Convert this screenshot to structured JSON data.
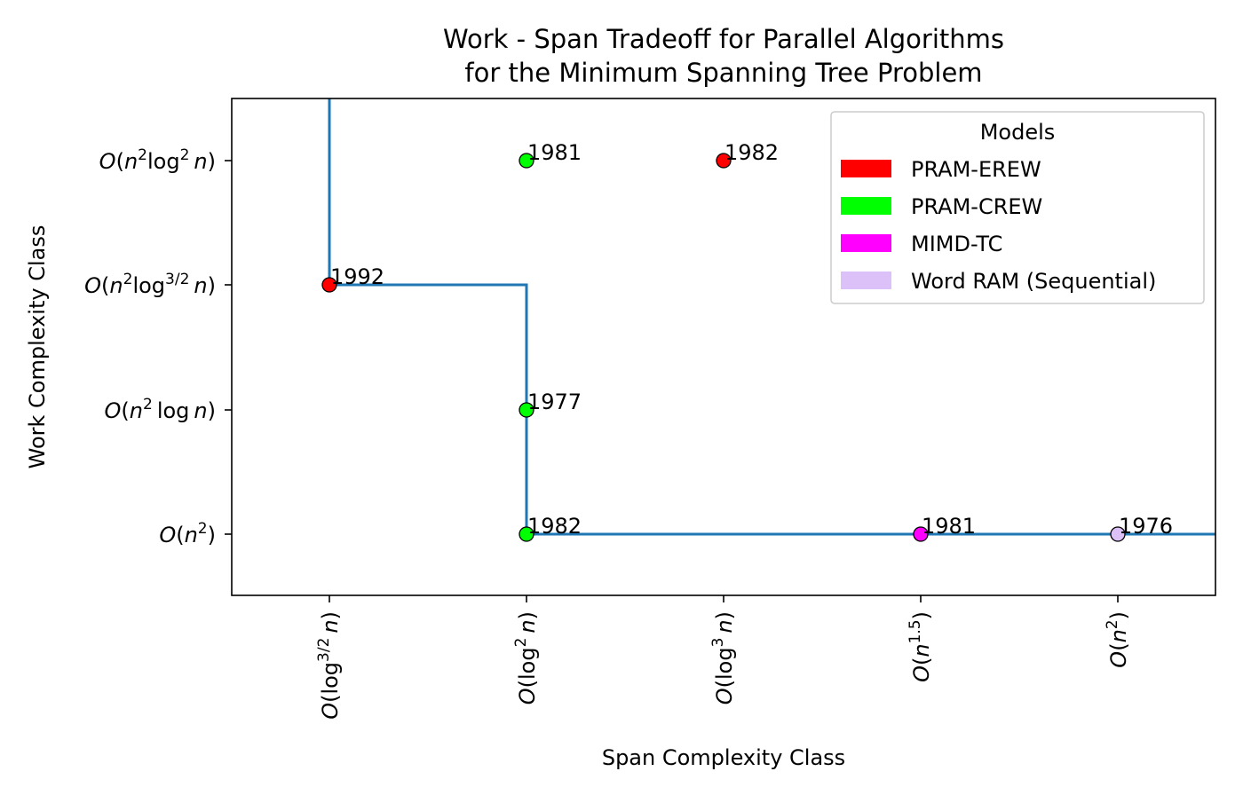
{
  "chart_data": {
    "type": "scatter",
    "title": "Work - Span Tradeoff for Parallel Algorithms",
    "subtitle": "for the Minimum Spanning Tree Problem",
    "xlabel": "Span Complexity Class",
    "ylabel": "Work Complexity Class",
    "x_categories": [
      {
        "id": "log32",
        "parts": [
          [
            "O",
            true
          ],
          [
            "(log",
            false
          ],
          [
            "3/2",
            false,
            "sup"
          ],
          [
            "n",
            true,
            "sp"
          ],
          [
            ")",
            false
          ]
        ]
      },
      {
        "id": "log2",
        "parts": [
          [
            "O",
            true
          ],
          [
            "(log",
            false
          ],
          [
            "2",
            false,
            "sup"
          ],
          [
            "n",
            true,
            "sp"
          ],
          [
            ")",
            false
          ]
        ]
      },
      {
        "id": "log3",
        "parts": [
          [
            "O",
            true
          ],
          [
            "(log",
            false
          ],
          [
            "3",
            false,
            "sup"
          ],
          [
            "n",
            true,
            "sp"
          ],
          [
            ")",
            false
          ]
        ]
      },
      {
        "id": "n15",
        "parts": [
          [
            "O",
            true
          ],
          [
            "(",
            false
          ],
          [
            "n",
            true
          ],
          [
            "1.5",
            false,
            "sup"
          ],
          [
            ")",
            false
          ]
        ]
      },
      {
        "id": "n2",
        "parts": [
          [
            "O",
            true
          ],
          [
            "(",
            false
          ],
          [
            "n",
            true
          ],
          [
            "2",
            false,
            "sup"
          ],
          [
            ")",
            false
          ]
        ]
      }
    ],
    "y_categories": [
      {
        "id": "n2",
        "parts": [
          [
            "O",
            true
          ],
          [
            "(",
            false
          ],
          [
            "n",
            true
          ],
          [
            "2",
            false,
            "sup"
          ],
          [
            ")",
            false
          ]
        ]
      },
      {
        "id": "n2log",
        "parts": [
          [
            "O",
            true
          ],
          [
            "(",
            false
          ],
          [
            "n",
            true
          ],
          [
            "2",
            false,
            "sup"
          ],
          [
            "log",
            false,
            "sp"
          ],
          [
            "n",
            true,
            "sp"
          ],
          [
            ")",
            false
          ]
        ]
      },
      {
        "id": "n2log32",
        "parts": [
          [
            "O",
            true
          ],
          [
            "(",
            false
          ],
          [
            "n",
            true
          ],
          [
            "2",
            false,
            "sup"
          ],
          [
            "log",
            false
          ],
          [
            "3/2",
            false,
            "sup"
          ],
          [
            "n",
            true,
            "sp"
          ],
          [
            ")",
            false
          ]
        ]
      },
      {
        "id": "n2log2",
        "parts": [
          [
            "O",
            true
          ],
          [
            "(",
            false
          ],
          [
            "n",
            true
          ],
          [
            "2",
            false,
            "sup"
          ],
          [
            "log",
            false
          ],
          [
            "2",
            false,
            "sup"
          ],
          [
            "n",
            true,
            "sp"
          ],
          [
            ")",
            false
          ]
        ]
      }
    ],
    "points": [
      {
        "x": "log32",
        "y": "n2log32",
        "year": "1992",
        "model": "PRAM-EREW"
      },
      {
        "x": "log2",
        "y": "n2log2",
        "year": "1981",
        "model": "PRAM-CREW"
      },
      {
        "x": "log3",
        "y": "n2log2",
        "year": "1982",
        "model": "PRAM-EREW"
      },
      {
        "x": "log2",
        "y": "n2log",
        "year": "1977",
        "model": "PRAM-CREW"
      },
      {
        "x": "log2",
        "y": "n2",
        "year": "1982",
        "model": "PRAM-CREW"
      },
      {
        "x": "n15",
        "y": "n2",
        "year": "1981",
        "model": "MIMD-TC"
      },
      {
        "x": "n2",
        "y": "n2",
        "year": "1976",
        "model": "Word RAM (Sequential)"
      }
    ],
    "frontier": [
      {
        "x": "log32",
        "y": "above"
      },
      {
        "x": "log32",
        "y": "n2log32"
      },
      {
        "x": "log2",
        "y": "n2log32"
      },
      {
        "x": "log2",
        "y": "n2"
      },
      {
        "x": "right-edge",
        "y": "n2"
      }
    ],
    "frontier_color": "#1f77b4",
    "legend": {
      "title": "Models",
      "placement": "upper-right",
      "entries": [
        {
          "label": "PRAM-EREW",
          "color": "#ff0000"
        },
        {
          "label": "PRAM-CREW",
          "color": "#00ff00"
        },
        {
          "label": "MIMD-TC",
          "color": "#ff00ff"
        },
        {
          "label": "Word RAM (Sequential)",
          "color": "#dcc0f8"
        }
      ]
    },
    "grid": false
  }
}
